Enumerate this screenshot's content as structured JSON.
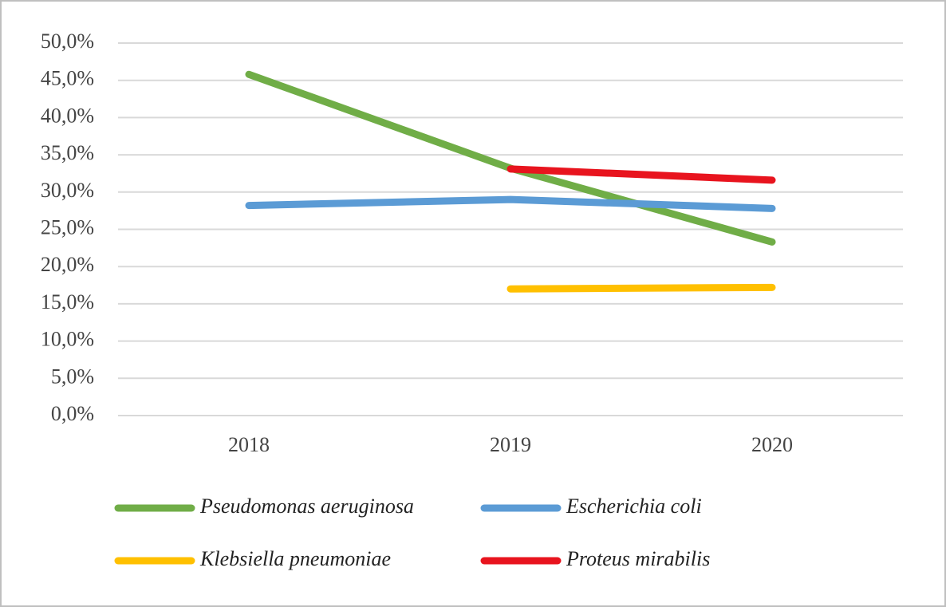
{
  "chart_data": {
    "type": "line",
    "categories": [
      "2018",
      "2019",
      "2020"
    ],
    "series": [
      {
        "name": "Pseudomonas aeruginosa",
        "color": "#70ad47",
        "values": [
          45.8,
          33.2,
          23.3
        ]
      },
      {
        "name": "Escherichia coli",
        "color": "#5b9bd5",
        "values": [
          28.2,
          29.0,
          27.8
        ]
      },
      {
        "name": "Klebsiella pneumoniae",
        "color": "#ffc000",
        "values": [
          null,
          17.0,
          17.2
        ]
      },
      {
        "name": "Proteus mirabilis",
        "color": "#e8141e",
        "values": [
          null,
          33.1,
          31.6
        ]
      }
    ],
    "ylim": [
      0,
      50
    ],
    "yticks": [
      {
        "value": 0,
        "label": "0,0%"
      },
      {
        "value": 5,
        "label": "5,0%"
      },
      {
        "value": 10,
        "label": "10,0%"
      },
      {
        "value": 15,
        "label": "15,0%"
      },
      {
        "value": 20,
        "label": "20,0%"
      },
      {
        "value": 25,
        "label": "25,0%"
      },
      {
        "value": 30,
        "label": "30,0%"
      },
      {
        "value": 35,
        "label": "35,0%"
      },
      {
        "value": 40,
        "label": "40,0%"
      },
      {
        "value": 45,
        "label": "45,0%"
      },
      {
        "value": 50,
        "label": "50,0%"
      }
    ],
    "grid": true,
    "legend": "bottom"
  }
}
